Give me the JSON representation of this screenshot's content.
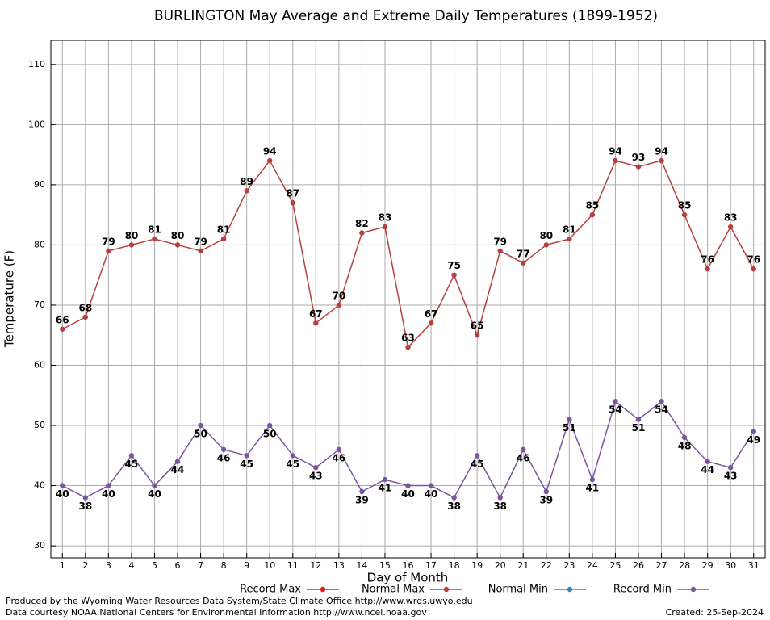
{
  "chart_data": {
    "type": "line",
    "title": "BURLINGTON May Average and Extreme Daily Temperatures (1899-1952)",
    "xlabel": "Day of Month",
    "ylabel": "Temperature (F)",
    "x": [
      1,
      2,
      3,
      4,
      5,
      6,
      7,
      8,
      9,
      10,
      11,
      12,
      13,
      14,
      15,
      16,
      17,
      18,
      19,
      20,
      21,
      22,
      23,
      24,
      25,
      26,
      27,
      28,
      29,
      30,
      31
    ],
    "xlim": [
      0.5,
      31.5
    ],
    "xticks": [
      1,
      2,
      3,
      4,
      5,
      6,
      7,
      8,
      9,
      10,
      11,
      12,
      13,
      14,
      15,
      16,
      17,
      18,
      19,
      20,
      21,
      22,
      23,
      24,
      25,
      26,
      27,
      28,
      29,
      30,
      31
    ],
    "ylim": [
      28,
      114
    ],
    "yticks": [
      30,
      40,
      50,
      60,
      70,
      80,
      90,
      100,
      110
    ],
    "grid": true,
    "series": [
      {
        "name": "Record Max",
        "color": "#e41a1c",
        "values": [
          null,
          null,
          null,
          null,
          null,
          null,
          null,
          null,
          null,
          null,
          null,
          null,
          null,
          null,
          null,
          null,
          null,
          null,
          null,
          null,
          null,
          null,
          null,
          null,
          null,
          null,
          null,
          null,
          null,
          null,
          null
        ]
      },
      {
        "name": "Normal Max",
        "color": "#b5403f",
        "label_position": "above",
        "values": [
          66,
          68,
          79,
          80,
          81,
          80,
          79,
          81,
          89,
          94,
          87,
          67,
          70,
          82,
          83,
          63,
          67,
          75,
          65,
          79,
          77,
          80,
          81,
          85,
          94,
          93,
          94,
          85,
          76,
          83,
          76
        ]
      },
      {
        "name": "Normal Min",
        "color": "#3b7fb8",
        "values": [
          null,
          null,
          null,
          null,
          null,
          null,
          null,
          null,
          null,
          null,
          null,
          null,
          null,
          null,
          null,
          null,
          null,
          null,
          null,
          null,
          null,
          null,
          null,
          null,
          null,
          null,
          null,
          null,
          null,
          null,
          null
        ]
      },
      {
        "name": "Record Min",
        "color": "#7b55a0",
        "label_position": "below",
        "values": [
          40,
          38,
          40,
          45,
          40,
          44,
          50,
          46,
          45,
          50,
          45,
          43,
          46,
          39,
          41,
          40,
          40,
          38,
          45,
          38,
          46,
          39,
          51,
          41,
          54,
          51,
          54,
          48,
          44,
          43,
          49
        ]
      }
    ],
    "footer_left": [
      "Produced by the Wyoming Water Resources Data System/State Climate Office http://www.wrds.uwyo.edu",
      "Data courtesy NOAA National Centers for Environmental Information http://www.ncei.noaa.gov"
    ],
    "footer_right": "Created:  25-Sep-2024"
  }
}
